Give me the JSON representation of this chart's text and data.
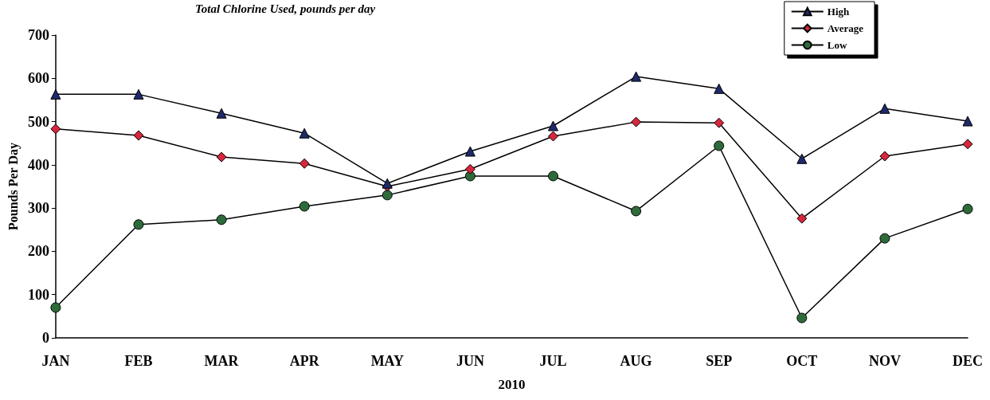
{
  "chart_data": {
    "type": "line",
    "title": "Total Chlorine Used, pounds per day",
    "xlabel": "2010",
    "ylabel": "Pounds Per Day",
    "categories": [
      "JAN",
      "FEB",
      "MAR",
      "APR",
      "MAY",
      "JUN",
      "JUL",
      "AUG",
      "SEP",
      "OCT",
      "NOV",
      "DEC"
    ],
    "series": [
      {
        "name": "High",
        "color": "#1f2a6b",
        "marker": "triangle",
        "values": [
          563,
          563,
          519,
          473,
          357,
          431,
          490,
          604,
          576,
          414,
          530,
          501
        ]
      },
      {
        "name": "Average",
        "color": "#d7263d",
        "marker": "diamond",
        "values": [
          483,
          468,
          418,
          403,
          350,
          390,
          466,
          499,
          497,
          276,
          420,
          448
        ]
      },
      {
        "name": "Low",
        "color": "#2e6b3a",
        "marker": "circle",
        "values": [
          70,
          262,
          273,
          304,
          330,
          374,
          374,
          293,
          444,
          46,
          230,
          298
        ]
      }
    ],
    "ylim": [
      0,
      700
    ],
    "yticks": [
      0,
      100,
      200,
      300,
      400,
      500,
      600,
      700
    ],
    "grid": false,
    "legend": "top right",
    "line_style": "solid"
  }
}
